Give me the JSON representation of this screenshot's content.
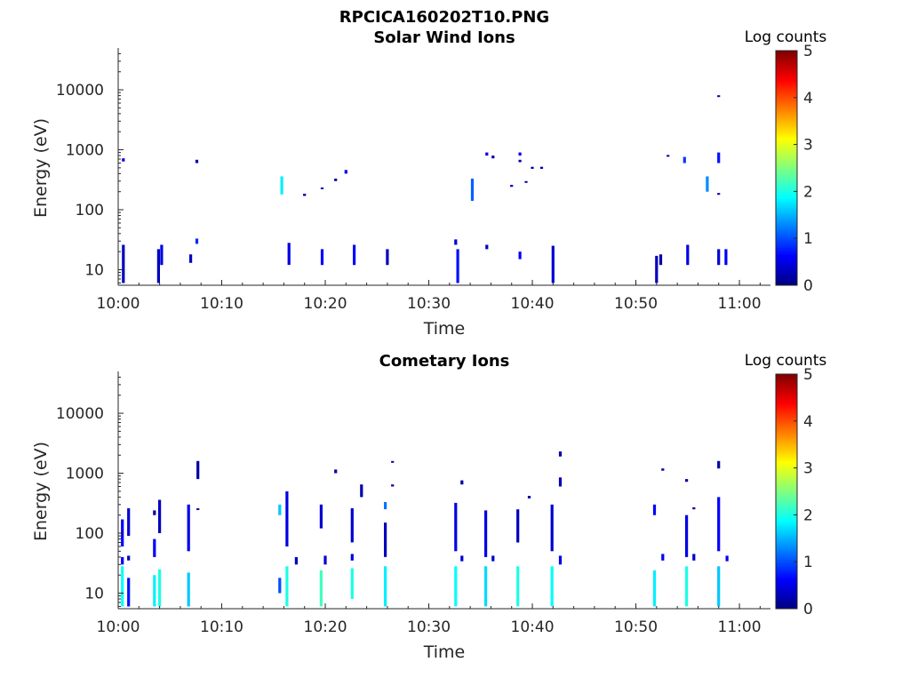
{
  "figure": {
    "title": "RPCICA160202T10.PNG"
  },
  "chart_data": [
    {
      "type": "heatmap",
      "title": "Solar Wind Ions",
      "xlabel": "Time",
      "ylabel": "Energy (eV)",
      "x_range_minutes": [
        0,
        63
      ],
      "x_ticks": [
        {
          "minute": 0,
          "label": "10:00"
        },
        {
          "minute": 10,
          "label": "10:10"
        },
        {
          "minute": 20,
          "label": "10:20"
        },
        {
          "minute": 30,
          "label": "10:30"
        },
        {
          "minute": 40,
          "label": "10:40"
        },
        {
          "minute": 50,
          "label": "10:50"
        },
        {
          "minute": 60,
          "label": "11:00"
        }
      ],
      "y_scale": "log",
      "y_range_eV": [
        5.5,
        45000
      ],
      "y_ticks": [
        {
          "value": 10,
          "label": "10"
        },
        {
          "value": 100,
          "label": "100"
        },
        {
          "value": 1000,
          "label": "1000"
        },
        {
          "value": 10000,
          "label": "10000"
        }
      ],
      "colorbar": {
        "label": "Log counts",
        "min": 0,
        "max": 5,
        "ticks": [
          "0",
          "1",
          "2",
          "3",
          "4",
          "5"
        ],
        "colormap": "jet"
      },
      "columns": [
        {
          "t": 0.5,
          "cells": [
            [
              6,
              26,
              0.3
            ],
            [
              640,
              720,
              0.5
            ]
          ]
        },
        {
          "t": 3.9,
          "cells": [
            [
              6,
              22,
              0.3
            ]
          ]
        },
        {
          "t": 4.2,
          "cells": [
            [
              12,
              26,
              0.5
            ]
          ]
        },
        {
          "t": 7.0,
          "cells": [
            [
              13,
              18,
              0.3
            ]
          ]
        },
        {
          "t": 7.6,
          "cells": [
            [
              27,
              33,
              0.8
            ],
            [
              600,
              680,
              0.2
            ]
          ]
        },
        {
          "t": 15.8,
          "cells": [
            [
              180,
              360,
              1.8
            ]
          ]
        },
        {
          "t": 16.5,
          "cells": [
            [
              12,
              28,
              0.5
            ]
          ]
        },
        {
          "t": 18.0,
          "cells": [
            [
              170,
              185,
              0.2
            ]
          ]
        },
        {
          "t": 19.7,
          "cells": [
            [
              12,
              22,
              0.6
            ],
            [
              220,
              235,
              0.2
            ]
          ]
        },
        {
          "t": 21.0,
          "cells": [
            [
              300,
              330,
              0.2
            ]
          ]
        },
        {
          "t": 22.0,
          "cells": [
            [
              400,
              460,
              0.5
            ]
          ]
        },
        {
          "t": 22.8,
          "cells": [
            [
              12,
              26,
              0.6
            ]
          ]
        },
        {
          "t": 26.0,
          "cells": [
            [
              12,
              22,
              0.3
            ]
          ]
        },
        {
          "t": 32.6,
          "cells": [
            [
              26,
              32,
              0.4
            ]
          ]
        },
        {
          "t": 32.8,
          "cells": [
            [
              6,
              22,
              0.7
            ]
          ]
        },
        {
          "t": 34.2,
          "cells": [
            [
              140,
              330,
              1.1
            ]
          ]
        },
        {
          "t": 35.6,
          "cells": [
            [
              22,
              26,
              0.3
            ],
            [
              800,
              900,
              0.5
            ]
          ]
        },
        {
          "t": 36.2,
          "cells": [
            [
              720,
              800,
              0.2
            ]
          ]
        },
        {
          "t": 38.0,
          "cells": [
            [
              240,
              260,
              0.4
            ]
          ]
        },
        {
          "t": 38.8,
          "cells": [
            [
              15,
              20,
              0.6
            ],
            [
              800,
              900,
              0.5
            ],
            [
              620,
              680,
              0.2
            ]
          ]
        },
        {
          "t": 39.4,
          "cells": [
            [
              280,
              300,
              0.2
            ]
          ]
        },
        {
          "t": 40.0,
          "cells": [
            [
              480,
              520,
              0.2
            ]
          ]
        },
        {
          "t": 40.9,
          "cells": [
            [
              480,
              520,
              0.2
            ]
          ]
        },
        {
          "t": 42.0,
          "cells": [
            [
              6,
              25,
              0.4
            ]
          ]
        },
        {
          "t": 52.0,
          "cells": [
            [
              6,
              17,
              0.3
            ]
          ]
        },
        {
          "t": 52.4,
          "cells": [
            [
              12,
              18,
              0.2
            ]
          ]
        },
        {
          "t": 53.1,
          "cells": [
            [
              780,
              820,
              0.2
            ]
          ]
        },
        {
          "t": 54.7,
          "cells": [
            [
              600,
              760,
              0.9
            ]
          ]
        },
        {
          "t": 55.0,
          "cells": [
            [
              12,
              26,
              0.5
            ]
          ]
        },
        {
          "t": 56.9,
          "cells": [
            [
              200,
              360,
              1.3
            ]
          ]
        },
        {
          "t": 58.0,
          "cells": [
            [
              12,
              22,
              0.4
            ],
            [
              180,
              190,
              0.2
            ],
            [
              600,
              900,
              0.7
            ],
            [
              7600,
              8100,
              0.2
            ]
          ]
        },
        {
          "t": 58.7,
          "cells": [
            [
              12,
              22,
              0.6
            ]
          ]
        }
      ]
    },
    {
      "type": "heatmap",
      "title": "Cometary Ions",
      "xlabel": "Time",
      "ylabel": "Energy (eV)",
      "x_range_minutes": [
        0,
        63
      ],
      "x_ticks": [
        {
          "minute": 0,
          "label": "10:00"
        },
        {
          "minute": 10,
          "label": "10:10"
        },
        {
          "minute": 20,
          "label": "10:20"
        },
        {
          "minute": 30,
          "label": "10:30"
        },
        {
          "minute": 40,
          "label": "10:40"
        },
        {
          "minute": 50,
          "label": "10:50"
        },
        {
          "minute": 60,
          "label": "11:00"
        }
      ],
      "y_scale": "log",
      "y_range_eV": [
        5.5,
        45000
      ],
      "y_ticks": [
        {
          "value": 10,
          "label": "10"
        },
        {
          "value": 100,
          "label": "100"
        },
        {
          "value": 1000,
          "label": "1000"
        },
        {
          "value": 10000,
          "label": "10000"
        }
      ],
      "colorbar": {
        "label": "Log counts",
        "min": 0,
        "max": 5,
        "ticks": [
          "0",
          "1",
          "2",
          "3",
          "4",
          "5"
        ],
        "colormap": "jet"
      },
      "columns": [
        {
          "t": 0.4,
          "cells": [
            [
              6,
              28,
              1.9
            ],
            [
              30,
              40,
              0.6
            ],
            [
              60,
              170,
              0.6
            ]
          ]
        },
        {
          "t": 1.0,
          "cells": [
            [
              6,
              18,
              0.7
            ],
            [
              35,
              42,
              0.3
            ],
            [
              90,
              260,
              0.4
            ]
          ]
        },
        {
          "t": 3.5,
          "cells": [
            [
              6,
              20,
              1.8
            ],
            [
              40,
              80,
              0.6
            ],
            [
              200,
              240,
              0.2
            ]
          ]
        },
        {
          "t": 4.0,
          "cells": [
            [
              6,
              25,
              2.0
            ],
            [
              100,
              360,
              0.3
            ]
          ]
        },
        {
          "t": 6.8,
          "cells": [
            [
              6,
              22,
              1.6
            ],
            [
              50,
              300,
              0.5
            ]
          ]
        },
        {
          "t": 7.7,
          "cells": [
            [
              250,
              260,
              0.2
            ],
            [
              800,
              1600,
              0.2
            ]
          ]
        },
        {
          "t": 15.6,
          "cells": [
            [
              10,
              18,
              1.0
            ],
            [
              200,
              300,
              1.6
            ]
          ]
        },
        {
          "t": 16.3,
          "cells": [
            [
              6,
              28,
              2.0
            ],
            [
              60,
              500,
              0.5
            ]
          ]
        },
        {
          "t": 17.2,
          "cells": [
            [
              30,
              40,
              0.3
            ]
          ]
        },
        {
          "t": 19.6,
          "cells": [
            [
              6,
              24,
              2.2
            ],
            [
              120,
              300,
              0.4
            ]
          ]
        },
        {
          "t": 20.0,
          "cells": [
            [
              30,
              42,
              0.4
            ]
          ]
        },
        {
          "t": 21.0,
          "cells": [
            [
              1000,
              1150,
              0.2
            ]
          ]
        },
        {
          "t": 22.6,
          "cells": [
            [
              8,
              26,
              2.0
            ],
            [
              70,
              260,
              0.4
            ],
            [
              35,
              45,
              0.5
            ]
          ]
        },
        {
          "t": 23.5,
          "cells": [
            [
              400,
              650,
              0.2
            ]
          ]
        },
        {
          "t": 25.8,
          "cells": [
            [
              6,
              28,
              1.8
            ],
            [
              40,
              150,
              0.3
            ],
            [
              250,
              330,
              1.2
            ]
          ]
        },
        {
          "t": 26.5,
          "cells": [
            [
              600,
              650,
              0.2
            ],
            [
              1500,
              1600,
              0.2
            ]
          ]
        },
        {
          "t": 32.6,
          "cells": [
            [
              6,
              28,
              1.9
            ],
            [
              50,
              320,
              0.5
            ]
          ]
        },
        {
          "t": 33.2,
          "cells": [
            [
              34,
              42,
              0.4
            ],
            [
              650,
              760,
              0.2
            ]
          ]
        },
        {
          "t": 35.5,
          "cells": [
            [
              6,
              28,
              1.7
            ],
            [
              40,
              240,
              0.5
            ]
          ]
        },
        {
          "t": 36.2,
          "cells": [
            [
              34,
              42,
              0.4
            ]
          ]
        },
        {
          "t": 38.6,
          "cells": [
            [
              6,
              28,
              2.0
            ],
            [
              70,
              250,
              0.3
            ]
          ]
        },
        {
          "t": 39.7,
          "cells": [
            [
              380,
              420,
              0.2
            ]
          ]
        },
        {
          "t": 41.9,
          "cells": [
            [
              6,
              28,
              1.9
            ],
            [
              50,
              300,
              0.4
            ]
          ]
        },
        {
          "t": 42.7,
          "cells": [
            [
              30,
              42,
              0.5
            ],
            [
              600,
              850,
              0.3
            ],
            [
              1900,
              2300,
              0.2
            ]
          ]
        },
        {
          "t": 51.8,
          "cells": [
            [
              6,
              24,
              1.8
            ],
            [
              200,
              300,
              0.6
            ]
          ]
        },
        {
          "t": 52.6,
          "cells": [
            [
              35,
              45,
              0.6
            ],
            [
              1100,
              1200,
              0.2
            ]
          ]
        },
        {
          "t": 54.9,
          "cells": [
            [
              6,
              28,
              2.0
            ],
            [
              40,
              200,
              0.5
            ],
            [
              720,
              800,
              0.2
            ]
          ]
        },
        {
          "t": 55.6,
          "cells": [
            [
              35,
              45,
              0.4
            ],
            [
              250,
              270,
              0.2
            ]
          ]
        },
        {
          "t": 58.0,
          "cells": [
            [
              6,
              28,
              1.6
            ],
            [
              50,
              400,
              0.6
            ],
            [
              1200,
              1600,
              0.2
            ]
          ]
        },
        {
          "t": 58.8,
          "cells": [
            [
              34,
              42,
              0.6
            ]
          ]
        }
      ]
    }
  ]
}
